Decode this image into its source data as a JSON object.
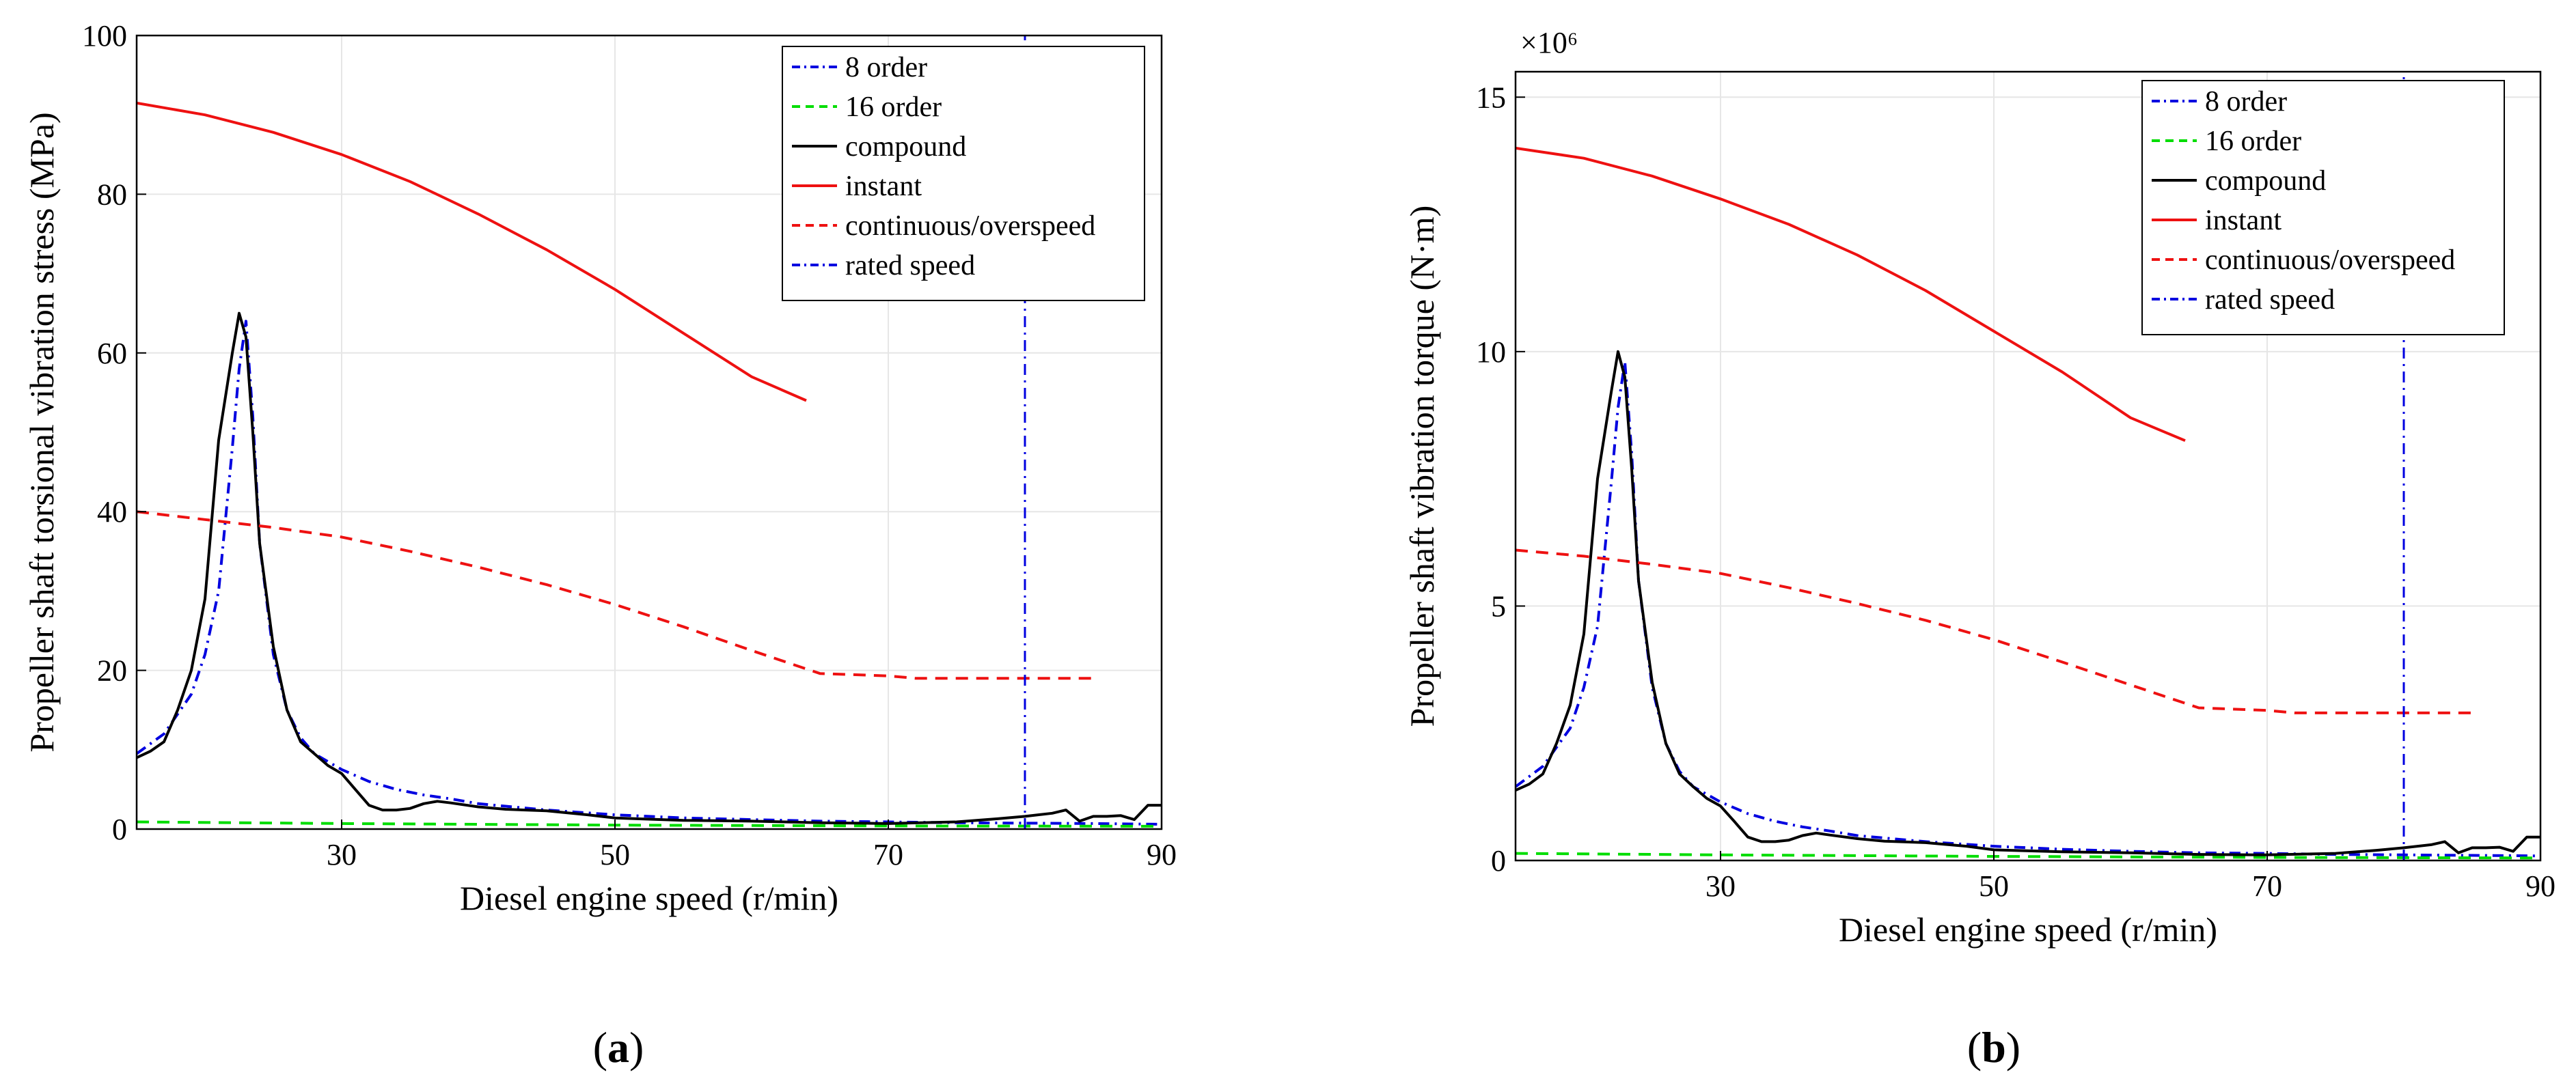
{
  "colors": {
    "order8": "#0000e0",
    "order16": "#00dd00",
    "compound": "#000000",
    "instant": "#ee1111",
    "continuous": "#ee1111",
    "rated": "#0000e0",
    "grid": "#e6e6e6",
    "axis": "#000000"
  },
  "chart_data": [
    {
      "type": "line",
      "panel_label": "(a)",
      "title": "",
      "xlabel": "Diesel engine speed (r/min)",
      "ylabel": "Propeller shaft torsional vibration stress (MPa)",
      "multiplier": "",
      "xlim": [
        15,
        90
      ],
      "ylim": [
        0,
        100
      ],
      "xticks": [
        30,
        50,
        70,
        90
      ],
      "yticks": [
        0,
        20,
        40,
        60,
        80,
        100
      ],
      "grid": true,
      "legend_position": "top-right",
      "series": [
        {
          "key": "order8",
          "name": "8 order",
          "style": "dashdot",
          "x": [
            15,
            17,
            19,
            20,
            21,
            22,
            22.5,
            23,
            23.5,
            24,
            25,
            26,
            27,
            28,
            30,
            32,
            34,
            36,
            38,
            40,
            45,
            50,
            55,
            60,
            65,
            70,
            75,
            80,
            85,
            90
          ],
          "y": [
            9.5,
            12,
            17,
            22,
            30,
            48,
            58,
            64,
            52,
            36,
            22,
            15,
            11.5,
            9.5,
            7.5,
            6,
            5,
            4.3,
            3.8,
            3.2,
            2.4,
            1.8,
            1.4,
            1.2,
            1.0,
            0.9,
            0.8,
            0.75,
            0.7,
            0.6
          ]
        },
        {
          "key": "order16",
          "name": "16 order",
          "style": "dashed",
          "x": [
            15,
            30,
            50,
            70,
            90
          ],
          "y": [
            0.9,
            0.7,
            0.5,
            0.4,
            0.35
          ]
        },
        {
          "key": "compound",
          "name": "compound",
          "style": "solid",
          "x": [
            15,
            16,
            17,
            18,
            19,
            20,
            21,
            22,
            22.5,
            23,
            23.5,
            24,
            25,
            26,
            27,
            28,
            29,
            30,
            31,
            32,
            33,
            34,
            35,
            36,
            37,
            38,
            40,
            42,
            45,
            48,
            50,
            55,
            60,
            65,
            70,
            75,
            78,
            80,
            82,
            83,
            84,
            85,
            86,
            87,
            88,
            89,
            90
          ],
          "y": [
            9,
            9.8,
            11,
            15,
            20,
            29,
            49,
            60,
            65,
            62,
            50,
            36,
            23,
            15,
            11,
            9.5,
            8,
            7,
            5,
            3,
            2.4,
            2.4,
            2.6,
            3.2,
            3.5,
            3.3,
            2.8,
            2.5,
            2.3,
            1.8,
            1.4,
            1.1,
            1.0,
            0.8,
            0.7,
            0.9,
            1.3,
            1.6,
            2.0,
            2.4,
            1.0,
            1.6,
            1.6,
            1.7,
            1.2,
            3.0,
            3.0
          ]
        },
        {
          "key": "instant",
          "name": "instant",
          "style": "solid",
          "x": [
            15,
            20,
            25,
            30,
            35,
            40,
            45,
            50,
            55,
            60,
            64
          ],
          "y": [
            91.5,
            90,
            87.8,
            85,
            81.6,
            77.5,
            73,
            68,
            62.5,
            57,
            54
          ]
        },
        {
          "key": "continuous",
          "name": "continuous/overspeed",
          "style": "dashed",
          "x": [
            15,
            20,
            25,
            30,
            35,
            40,
            45,
            50,
            55,
            60,
            65,
            70,
            72,
            75,
            80,
            85
          ],
          "y": [
            40,
            39,
            38,
            36.8,
            35,
            33,
            30.8,
            28.3,
            25.5,
            22.5,
            19.6,
            19.3,
            19,
            19,
            19,
            19
          ]
        },
        {
          "key": "rated",
          "name": "rated speed",
          "style": "dashdot",
          "x": [
            80,
            80
          ],
          "y": [
            0,
            100
          ]
        }
      ]
    },
    {
      "type": "line",
      "panel_label": "(b)",
      "title": "",
      "xlabel": "Diesel engine speed (r/min)",
      "ylabel": "Propeller shaft vibration torque (N·m)",
      "multiplier": "×10⁶",
      "xlim": [
        15,
        90
      ],
      "ylim": [
        0,
        15.5
      ],
      "xticks": [
        30,
        50,
        70,
        90
      ],
      "yticks": [
        0,
        5,
        10,
        15
      ],
      "grid": true,
      "legend_position": "top-right",
      "series": [
        {
          "key": "order8",
          "name": "8 order",
          "style": "dashdot",
          "x": [
            15,
            17,
            19,
            20,
            21,
            22,
            22.5,
            23,
            23.5,
            24,
            25,
            26,
            27,
            28,
            30,
            32,
            34,
            36,
            38,
            40,
            45,
            50,
            55,
            60,
            65,
            70,
            75,
            80,
            85,
            90
          ],
          "y": [
            1.45,
            1.85,
            2.6,
            3.4,
            4.6,
            7.4,
            8.9,
            9.8,
            8.0,
            5.5,
            3.4,
            2.3,
            1.75,
            1.45,
            1.15,
            0.92,
            0.77,
            0.66,
            0.58,
            0.49,
            0.37,
            0.28,
            0.22,
            0.18,
            0.15,
            0.14,
            0.12,
            0.11,
            0.1,
            0.09
          ]
        },
        {
          "key": "order16",
          "name": "16 order",
          "style": "dashed",
          "x": [
            15,
            30,
            50,
            70,
            90
          ],
          "y": [
            0.14,
            0.11,
            0.08,
            0.06,
            0.05
          ]
        },
        {
          "key": "compound",
          "name": "compound",
          "style": "solid",
          "x": [
            15,
            16,
            17,
            18,
            19,
            20,
            21,
            22,
            22.5,
            23,
            23.5,
            24,
            25,
            26,
            27,
            28,
            29,
            30,
            31,
            32,
            33,
            34,
            35,
            36,
            37,
            38,
            40,
            42,
            45,
            48,
            50,
            55,
            60,
            65,
            70,
            75,
            78,
            80,
            82,
            83,
            84,
            85,
            86,
            87,
            88,
            89,
            90
          ],
          "y": [
            1.38,
            1.5,
            1.7,
            2.3,
            3.05,
            4.45,
            7.5,
            9.2,
            10.0,
            9.5,
            7.7,
            5.5,
            3.5,
            2.3,
            1.7,
            1.45,
            1.22,
            1.07,
            0.77,
            0.46,
            0.37,
            0.37,
            0.4,
            0.49,
            0.54,
            0.5,
            0.43,
            0.38,
            0.35,
            0.28,
            0.21,
            0.17,
            0.15,
            0.12,
            0.11,
            0.14,
            0.2,
            0.25,
            0.31,
            0.37,
            0.15,
            0.25,
            0.25,
            0.26,
            0.18,
            0.46,
            0.46
          ]
        },
        {
          "key": "instant",
          "name": "instant",
          "style": "solid",
          "x": [
            15,
            20,
            25,
            30,
            35,
            40,
            45,
            50,
            55,
            60,
            64
          ],
          "y": [
            14,
            13.8,
            13.45,
            13.0,
            12.5,
            11.9,
            11.2,
            10.4,
            9.6,
            8.7,
            8.25
          ]
        },
        {
          "key": "continuous",
          "name": "continuous/overspeed",
          "style": "dashed",
          "x": [
            15,
            20,
            25,
            30,
            35,
            40,
            45,
            50,
            55,
            60,
            65,
            70,
            72,
            75,
            80,
            85
          ],
          "y": [
            6.1,
            5.98,
            5.82,
            5.64,
            5.36,
            5.05,
            4.72,
            4.34,
            3.9,
            3.45,
            3.0,
            2.95,
            2.9,
            2.9,
            2.9,
            2.9
          ]
        },
        {
          "key": "rated",
          "name": "rated speed",
          "style": "dashdot",
          "x": [
            80,
            80
          ],
          "y": [
            0,
            15.5
          ]
        }
      ]
    }
  ]
}
